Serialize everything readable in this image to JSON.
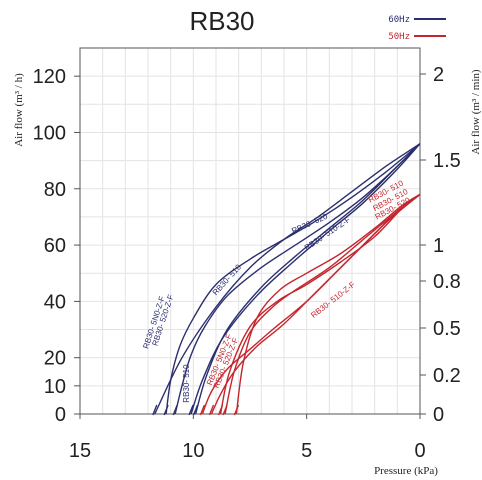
{
  "chart_data": {
    "type": "line",
    "title": "RB30",
    "xlabel": "Pressure (kPa)",
    "ylabel": "Air flow (m³ / h)",
    "y2label": "Air flow (m³ / min)",
    "xlim": [
      15,
      0
    ],
    "ylim": [
      0,
      130
    ],
    "xticks": [
      "15",
      "10",
      "5",
      "0"
    ],
    "xtick_values": [
      15,
      10,
      5,
      0
    ],
    "yticks": [
      "0",
      "10",
      "20",
      "40",
      "60",
      "80",
      "100",
      "120"
    ],
    "ytick_values": [
      0,
      10,
      20,
      40,
      60,
      80,
      100,
      120
    ],
    "y2ticks": [
      "0",
      "0.2",
      "0.5",
      "0.8",
      "1",
      "1.5",
      "2"
    ],
    "y2tick_values": [
      0,
      0.2,
      0.5,
      0.8,
      1,
      1.5,
      2
    ],
    "grid": true,
    "legend_position": "top-right",
    "legend": [
      {
        "name": "60Hz",
        "color": "#2b2f6e"
      },
      {
        "name": "50Hz",
        "color": "#c4262e"
      }
    ],
    "series": [
      {
        "name": "RB30- 5N0-Z-F",
        "freq": "60Hz",
        "color": "#2b2f6e",
        "x": [
          11.2,
          11.0,
          10.6,
          10.0,
          9.0,
          7.5,
          6.0,
          4.5,
          3.0,
          1.5,
          0
        ],
        "y": [
          0,
          12,
          24,
          34,
          46,
          55,
          62,
          69,
          77,
          86,
          96
        ]
      },
      {
        "name": "RB30- 520-Z-F",
        "freq": "60Hz",
        "color": "#2b2f6e",
        "x": [
          10.8,
          10.5,
          10.1,
          9.5,
          8.5,
          7.0,
          5.5,
          4.0,
          2.5,
          1.0,
          0
        ],
        "y": [
          0,
          10,
          21,
          31,
          42,
          52,
          60,
          68,
          77,
          88,
          96
        ]
      },
      {
        "name": "RB30- 520",
        "freq": "60Hz",
        "color": "#2b2f6e",
        "x": [
          11.7,
          10.5,
          9.0,
          7.5,
          6.0,
          4.5,
          3.0,
          1.5,
          0
        ],
        "y": [
          0,
          20,
          38,
          52,
          62,
          70,
          79,
          88,
          96
        ]
      },
      {
        "name": "RB30- 510",
        "freq": "60Hz",
        "color": "#2b2f6e",
        "x": [
          9.9,
          9.4,
          8.5,
          7.0,
          5.5,
          4.0,
          2.5,
          1.0,
          0
        ],
        "y": [
          0,
          14,
          30,
          45,
          56,
          66,
          76,
          88,
          96
        ]
      },
      {
        "name": "RB30- 510-Z-F",
        "freq": "60Hz",
        "color": "#2b2f6e",
        "x": [
          10.1,
          9.6,
          8.7,
          7.2,
          5.6,
          4.0,
          2.5,
          1.0,
          0
        ],
        "y": [
          0,
          12,
          27,
          42,
          54,
          65,
          75,
          87,
          96
        ]
      },
      {
        "name": "RB30- 5N0-Z-F",
        "freq": "50Hz",
        "color": "#c4262e",
        "x": [
          9.6,
          9.2,
          8.5,
          7.5,
          6.5,
          5.0,
          3.5,
          2.0,
          1.0,
          0
        ],
        "y": [
          0,
          8,
          16,
          23,
          30,
          40,
          52,
          64,
          72,
          78
        ]
      },
      {
        "name": "RB30- 520-Z-F",
        "freq": "50Hz",
        "color": "#c4262e",
        "x": [
          9.2,
          8.8,
          8.2,
          7.2,
          6.0,
          4.5,
          3.0,
          1.5,
          0
        ],
        "y": [
          0,
          7,
          15,
          24,
          32,
          44,
          56,
          68,
          78
        ]
      },
      {
        "name": "RB30- 510",
        "freq": "50Hz",
        "color": "#c4262e",
        "x": [
          8.1,
          7.8,
          7.2,
          6.2,
          5.0,
          3.5,
          2.0,
          0.8,
          0
        ],
        "y": [
          0,
          18,
          34,
          44,
          50,
          57,
          66,
          74,
          78
        ]
      },
      {
        "name": "RB30- 510-Z-F",
        "freq": "50Hz",
        "color": "#c4262e",
        "x": [
          8.8,
          8.4,
          7.5,
          6.3,
          5.0,
          3.5,
          2.0,
          0.8,
          0
        ],
        "y": [
          0,
          15,
          31,
          40,
          46,
          54,
          63,
          73,
          78
        ]
      },
      {
        "name": "RB30- 520",
        "freq": "50Hz",
        "color": "#c4262e",
        "x": [
          8.6,
          8.2,
          7.5,
          6.5,
          5.5,
          4.0,
          2.5,
          1.0,
          0
        ],
        "y": [
          0,
          15,
          29,
          38,
          44,
          52,
          62,
          72,
          78
        ]
      }
    ],
    "annotations": [
      {
        "text": "RB30- 520",
        "x": 5.6,
        "y": 64,
        "angle": -24,
        "color": "#2b2f6e"
      },
      {
        "text": "RB30- 510",
        "x": 9.0,
        "y": 42,
        "angle": -48,
        "color": "#2b2f6e"
      },
      {
        "text": "RB30- 510-Z-F",
        "x": 5.0,
        "y": 58,
        "angle": -34,
        "color": "#2b2f6e"
      },
      {
        "text": "RB30- 5N0-Z-F",
        "x": 12.0,
        "y": 23,
        "angle": -72,
        "color": "#2b2f6e"
      },
      {
        "text": "RB30- 520-Z-F",
        "x": 11.6,
        "y": 24,
        "angle": -72,
        "color": "#2b2f6e"
      },
      {
        "text": "RB30- 510",
        "x": 10.2,
        "y": 4,
        "angle": -90,
        "color": "#2b2f6e"
      },
      {
        "text": "RB30- 510",
        "x": 2.2,
        "y": 75,
        "angle": -28,
        "color": "#c4262e"
      },
      {
        "text": "RB30- 510",
        "x": 2.0,
        "y": 72,
        "angle": -28,
        "color": "#c4262e"
      },
      {
        "text": "RB30- 520",
        "x": 1.9,
        "y": 69,
        "angle": -28,
        "color": "#c4262e"
      },
      {
        "text": "RB30- 510-Z-F",
        "x": 4.7,
        "y": 34,
        "angle": -38,
        "color": "#c4262e"
      },
      {
        "text": "RB30- 5N0-Z-F",
        "x": 9.2,
        "y": 10,
        "angle": -68,
        "color": "#c4262e"
      },
      {
        "text": "RB30- 520-Z-F",
        "x": 8.9,
        "y": 9,
        "angle": -68,
        "color": "#c4262e"
      }
    ]
  }
}
